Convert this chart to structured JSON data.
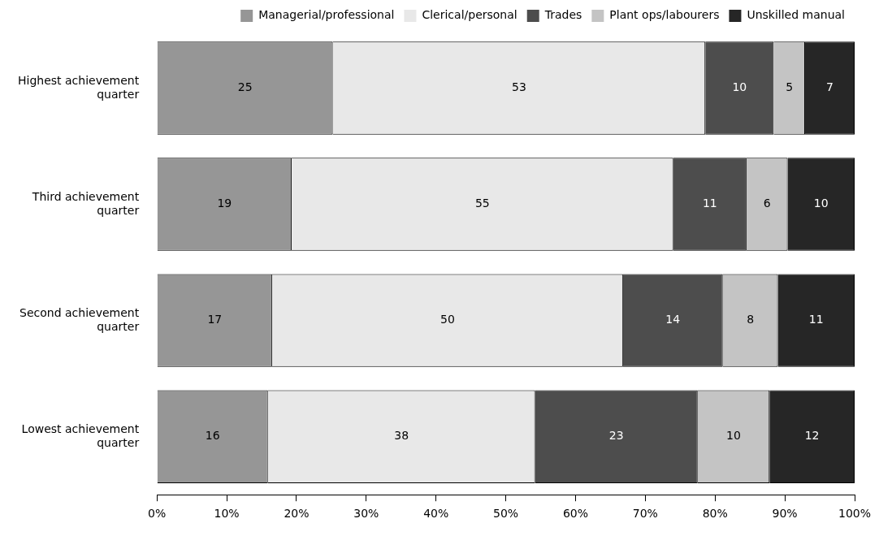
{
  "chart_data": {
    "type": "bar",
    "orientation": "horizontal",
    "stacked": true,
    "legend": "top",
    "categories": [
      "Highest achievement quarter",
      "Third achievement quarter",
      "Second achievement quarter",
      "Lowest achievement quarter"
    ],
    "series": [
      {
        "name": "Managerial/professional",
        "color": "#969696",
        "values": [
          25.2,
          19.3,
          16.5,
          15.9
        ],
        "value_labels": [
          "25",
          "19",
          "17",
          "16"
        ]
      },
      {
        "name": "Clerical/personal",
        "color": "#e8e8e8",
        "values": [
          53.4,
          54.7,
          50.3,
          38.3
        ],
        "value_labels": [
          "53",
          "55",
          "50",
          "38"
        ]
      },
      {
        "name": "Trades",
        "color": "#4d4d4d",
        "values": [
          9.8,
          10.5,
          14.3,
          23.3
        ],
        "value_labels": [
          "10",
          "11",
          "14",
          "23"
        ]
      },
      {
        "name": "Plant ops/labourers",
        "color": "#c4c4c4",
        "values": [
          4.5,
          5.9,
          7.9,
          10.3
        ],
        "value_labels": [
          "5",
          "6",
          "8",
          "10"
        ]
      },
      {
        "name": "Unskilled manual",
        "color": "#262626",
        "values": [
          7.1,
          9.6,
          11.0,
          12.2
        ],
        "value_labels": [
          "7",
          "10",
          "11",
          "12"
        ]
      }
    ],
    "xlim": [
      0,
      100
    ],
    "xticks": [
      {
        "value": 0,
        "label": "0%"
      },
      {
        "value": 10,
        "label": "10%"
      },
      {
        "value": 20,
        "label": "20%"
      },
      {
        "value": 30,
        "label": "30%"
      },
      {
        "value": 40,
        "label": "40%"
      },
      {
        "value": 50,
        "label": "50%"
      },
      {
        "value": 60,
        "label": "60%"
      },
      {
        "value": 70,
        "label": "70%"
      },
      {
        "value": 80,
        "label": "80%"
      },
      {
        "value": 90,
        "label": "90%"
      },
      {
        "value": 100,
        "label": "100%"
      }
    ]
  }
}
